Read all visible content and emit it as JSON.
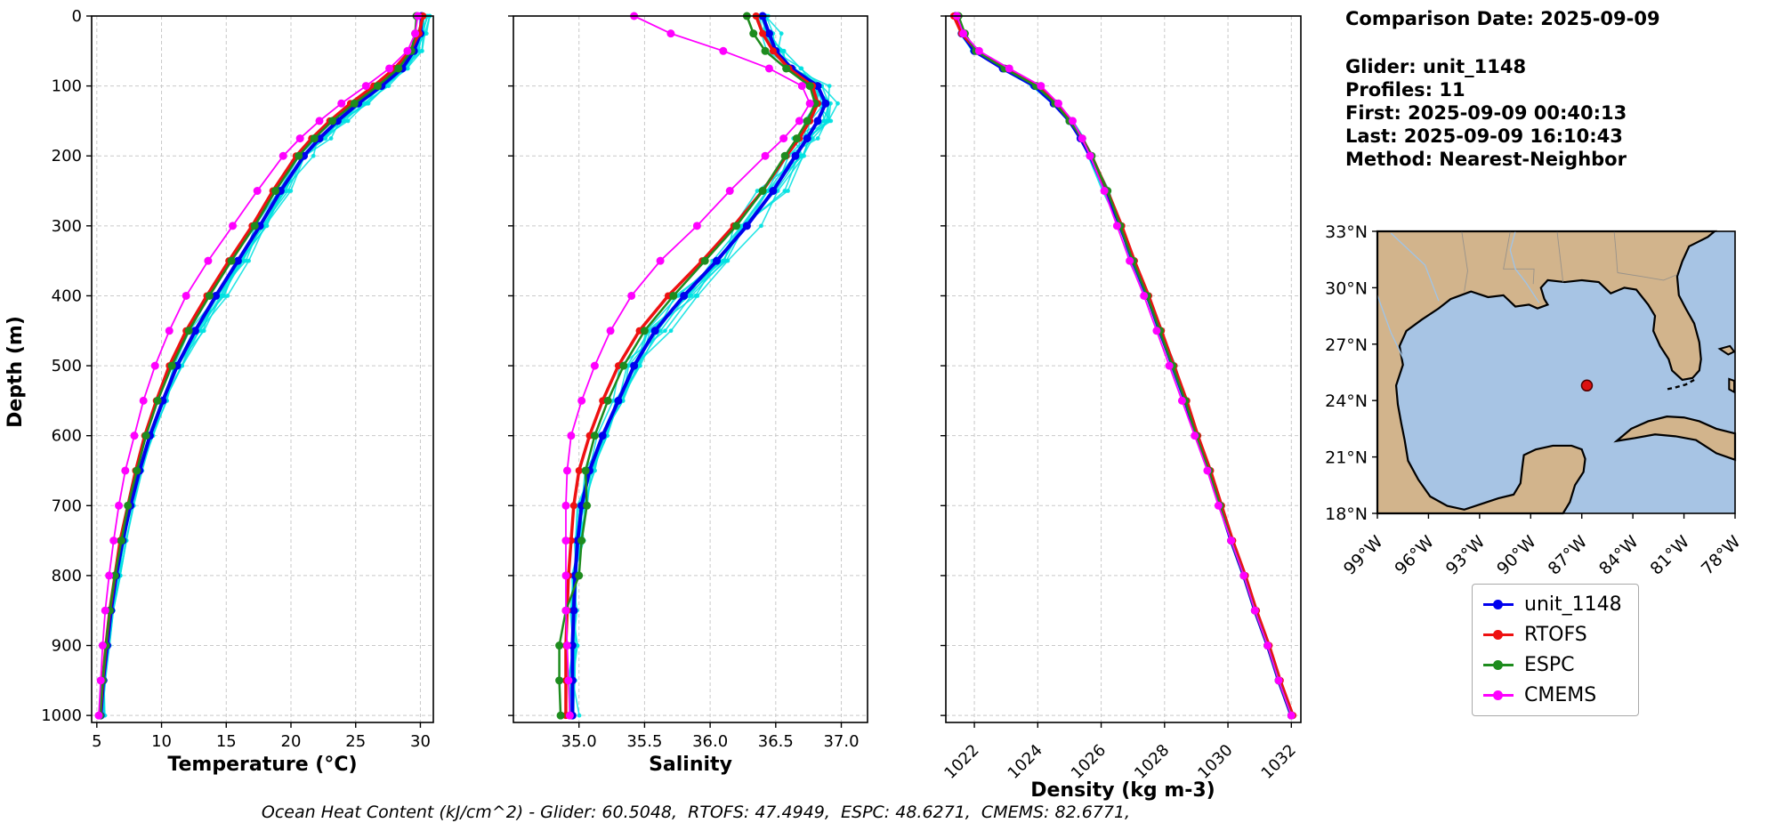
{
  "info_panel": {
    "comparison_date": "Comparison Date: 2025-09-09",
    "lines": [
      "Glider: unit_1148",
      "Profiles: 11",
      "First: 2025-09-09 00:40:13",
      "Last: 2025-09-09 16:10:43",
      "Method: Nearest-Neighbor"
    ]
  },
  "caption": "Ocean Heat Content (kJ/cm^2) - Glider: 60.5048,  RTOFS: 47.4949,  ESPC: 48.6271,  CMEMS: 82.6771,",
  "legend": {
    "items": [
      {
        "label": "unit_1148",
        "color": "#0000EE"
      },
      {
        "label": "RTOFS",
        "color": "#EE1111"
      },
      {
        "label": "ESPC",
        "color": "#1E8C1E"
      },
      {
        "label": "CMEMS",
        "color": "#FF00FF"
      }
    ]
  },
  "chart_data": {
    "type": "line",
    "ylabel": "Depth (m)",
    "ylim": [
      0,
      1010
    ],
    "y_ticks": [
      0,
      100,
      200,
      300,
      400,
      500,
      600,
      700,
      800,
      900,
      1000
    ],
    "depths": [
      0,
      25,
      50,
      75,
      100,
      125,
      150,
      175,
      200,
      250,
      300,
      350,
      400,
      450,
      500,
      550,
      600,
      650,
      700,
      750,
      800,
      850,
      900,
      950,
      1000
    ],
    "charts": [
      {
        "id": "temperature",
        "xlabel": "Temperature (°C)",
        "xlim": [
          4.6,
          31.0
        ],
        "x_ticks": [
          5,
          10,
          15,
          20,
          25,
          30
        ],
        "envelope": {
          "series": "unit_1148",
          "color": "#00E1E1",
          "lines": 9,
          "amp": 0.5,
          "bias": 0.18,
          "seed": 11
        },
        "series": [
          {
            "name": "unit_1148",
            "color": "#0000EE",
            "width": 4,
            "marker": 4.5,
            "values": [
              30.1,
              30.0,
              29.5,
              28.6,
              27.0,
              25.2,
              23.6,
              22.2,
              21.0,
              19.2,
              17.6,
              15.9,
              14.2,
              12.6,
              11.2,
              10.1,
              9.1,
              8.3,
              7.6,
              7.0,
              6.5,
              6.1,
              5.8,
              5.5,
              5.3
            ]
          },
          {
            "name": "RTOFS",
            "color": "#EE1111",
            "width": 3.5,
            "marker": 4,
            "values": [
              30.2,
              29.9,
              29.2,
              28.0,
              26.4,
              24.6,
              23.0,
              21.6,
              20.4,
              18.6,
              17.0,
              15.2,
              13.5,
              11.9,
              10.6,
              9.6,
              8.7,
              8.0,
              7.4,
              6.8,
              6.4,
              6.0,
              5.7,
              5.45,
              5.25
            ]
          },
          {
            "name": "ESPC",
            "color": "#1E8C1E",
            "width": 2.5,
            "marker": 4.5,
            "values": [
              29.7,
              29.6,
              29.3,
              28.3,
              26.7,
              24.9,
              23.2,
              21.8,
              20.6,
              18.8,
              17.2,
              15.4,
              13.7,
              12.1,
              10.8,
              9.7,
              8.8,
              8.1,
              7.4,
              6.9,
              6.4,
              6.0,
              5.7,
              5.45,
              5.25
            ]
          },
          {
            "name": "CMEMS",
            "color": "#FF00FF",
            "width": 1.8,
            "marker": 4.5,
            "values": [
              29.8,
              29.6,
              29.0,
              27.6,
              25.8,
              23.9,
              22.2,
              20.7,
              19.4,
              17.4,
              15.5,
              13.6,
              11.9,
              10.6,
              9.5,
              8.6,
              7.9,
              7.2,
              6.7,
              6.3,
              5.95,
              5.65,
              5.45,
              5.3,
              5.15
            ]
          }
        ]
      },
      {
        "id": "salinity",
        "xlabel": "Salinity",
        "xlim": [
          34.5,
          37.2
        ],
        "x_ticks": [
          35.0,
          35.5,
          36.0,
          36.5,
          37.0
        ],
        "x_tick_labels": [
          "35.0",
          "35.5",
          "36.0",
          "36.5",
          "37.0"
        ],
        "envelope": {
          "series": "unit_1148",
          "color": "#00E1E1",
          "lines": 9,
          "amp": 0.1,
          "bias": 0.02,
          "seed": 22
        },
        "series": [
          {
            "name": "unit_1148",
            "color": "#0000EE",
            "width": 4,
            "marker": 4.5,
            "values": [
              36.4,
              36.45,
              36.5,
              36.62,
              36.82,
              36.88,
              36.82,
              36.74,
              36.65,
              36.48,
              36.28,
              36.05,
              35.8,
              35.58,
              35.42,
              35.3,
              35.18,
              35.08,
              35.02,
              34.99,
              34.97,
              34.96,
              34.95,
              34.95,
              34.95
            ]
          },
          {
            "name": "RTOFS",
            "color": "#EE1111",
            "width": 3.5,
            "marker": 4,
            "values": [
              36.35,
              36.4,
              36.48,
              36.6,
              36.78,
              36.82,
              36.76,
              36.68,
              36.58,
              36.4,
              36.18,
              35.94,
              35.68,
              35.46,
              35.3,
              35.18,
              35.08,
              35.0,
              34.96,
              34.94,
              34.92,
              34.91,
              34.9,
              34.9,
              34.9
            ]
          },
          {
            "name": "ESPC",
            "color": "#1E8C1E",
            "width": 2.5,
            "marker": 4.5,
            "values": [
              36.28,
              36.33,
              36.42,
              36.58,
              36.76,
              36.8,
              36.74,
              36.66,
              36.57,
              36.4,
              36.2,
              35.96,
              35.72,
              35.5,
              35.34,
              35.22,
              35.12,
              35.05,
              35.06,
              35.02,
              35.0,
              34.9,
              34.85,
              34.85,
              34.86
            ]
          },
          {
            "name": "CMEMS",
            "color": "#FF00FF",
            "width": 1.8,
            "marker": 4.5,
            "values": [
              35.42,
              35.7,
              36.1,
              36.45,
              36.7,
              36.76,
              36.68,
              36.56,
              36.42,
              36.15,
              35.9,
              35.62,
              35.4,
              35.24,
              35.12,
              35.02,
              34.94,
              34.91,
              34.9,
              34.9,
              34.9,
              34.9,
              34.91,
              34.92,
              34.93
            ]
          }
        ]
      },
      {
        "id": "density",
        "xlabel": "Density (kg m-3)",
        "xlim": [
          1021.1,
          1032.3
        ],
        "x_ticks": [
          1022,
          1024,
          1026,
          1028,
          1030,
          1032
        ],
        "rotate_x": true,
        "envelope": {
          "series": "unit_1148",
          "color": "#00E1E1",
          "lines": 6,
          "amp": 0.1,
          "bias": 0,
          "seed": 33
        },
        "series": [
          {
            "name": "unit_1148",
            "color": "#0000EE",
            "width": 4,
            "marker": 4.5,
            "values": [
              1021.4,
              1021.6,
              1022.0,
              1022.9,
              1023.9,
              1024.5,
              1025.0,
              1025.35,
              1025.65,
              1026.15,
              1026.6,
              1027.0,
              1027.45,
              1027.85,
              1028.25,
              1028.65,
              1029.0,
              1029.4,
              1029.75,
              1030.1,
              1030.5,
              1030.85,
              1031.25,
              1031.6,
              1032.0
            ]
          },
          {
            "name": "RTOFS",
            "color": "#EE1111",
            "width": 3.5,
            "marker": 4,
            "values": [
              1021.35,
              1021.6,
              1022.1,
              1023.0,
              1024.0,
              1024.6,
              1025.05,
              1025.4,
              1025.7,
              1026.2,
              1026.65,
              1027.05,
              1027.5,
              1027.9,
              1028.3,
              1028.7,
              1029.05,
              1029.45,
              1029.8,
              1030.15,
              1030.55,
              1030.9,
              1031.3,
              1031.65,
              1032.05
            ]
          },
          {
            "name": "ESPC",
            "color": "#1E8C1E",
            "width": 2.5,
            "marker": 4.5,
            "values": [
              1021.5,
              1021.7,
              1022.05,
              1022.95,
              1023.95,
              1024.55,
              1025.0,
              1025.4,
              1025.7,
              1026.2,
              1026.6,
              1027.0,
              1027.45,
              1027.85,
              1028.25,
              1028.65,
              1029.0,
              1029.4,
              1029.75,
              1030.1,
              1030.5,
              1030.85,
              1031.25,
              1031.6,
              1032.0
            ]
          },
          {
            "name": "CMEMS",
            "color": "#FF00FF",
            "width": 1.8,
            "marker": 4.5,
            "values": [
              1021.45,
              1021.65,
              1022.15,
              1023.1,
              1024.1,
              1024.65,
              1025.1,
              1025.4,
              1025.65,
              1026.1,
              1026.5,
              1026.9,
              1027.35,
              1027.75,
              1028.15,
              1028.55,
              1028.95,
              1029.35,
              1029.7,
              1030.1,
              1030.5,
              1030.85,
              1031.25,
              1031.6,
              1032.0
            ]
          }
        ]
      }
    ]
  },
  "map": {
    "extent": {
      "lon": [
        -99,
        -78
      ],
      "lat": [
        18,
        33
      ]
    },
    "lat_ticks": {
      "values": [
        33,
        30,
        27,
        24,
        21,
        18
      ],
      "labels": [
        "33°N",
        "30°N",
        "27°N",
        "24°N",
        "21°N",
        "18°N"
      ]
    },
    "lon_ticks": {
      "values": [
        -99,
        -96,
        -93,
        -90,
        -87,
        -84,
        -81,
        -78
      ],
      "labels": [
        "99°W",
        "96°W",
        "93°W",
        "90°W",
        "87°W",
        "84°W",
        "81°W",
        "78°W"
      ]
    },
    "marker": {
      "lon": -86.7,
      "lat": 24.8
    },
    "colors": {
      "water": "#A7C4E4",
      "land": "#D2B48C",
      "coast": "#000000",
      "marker": "#DD1111",
      "river": "#9FC4E8",
      "border_line": "#8A8A8A"
    },
    "land": {
      "mainland": [
        [
          -99,
          33
        ],
        [
          -79.2,
          33
        ],
        [
          -79.6,
          32.7
        ],
        [
          -80.7,
          32.2
        ],
        [
          -81.1,
          31.4
        ],
        [
          -81.4,
          30.6
        ],
        [
          -81.3,
          29.6
        ],
        [
          -80.9,
          28.9
        ],
        [
          -80.4,
          28.1
        ],
        [
          -80.1,
          27.1
        ],
        [
          -80,
          26.2
        ],
        [
          -80.1,
          25.6
        ],
        [
          -80.5,
          25.2
        ],
        [
          -81.1,
          25.1
        ],
        [
          -81.7,
          25.6
        ],
        [
          -81.9,
          26.2
        ],
        [
          -82.4,
          26.9
        ],
        [
          -82.8,
          27.7
        ],
        [
          -82.7,
          28.5
        ],
        [
          -83.1,
          29.1
        ],
        [
          -83.8,
          29.9
        ],
        [
          -84.5,
          30
        ],
        [
          -85.3,
          29.7
        ],
        [
          -86,
          30.3
        ],
        [
          -87,
          30.4
        ],
        [
          -88,
          30.3
        ],
        [
          -89,
          30.4
        ],
        [
          -89.4,
          30
        ],
        [
          -89.2,
          29.4
        ],
        [
          -89,
          29.1
        ],
        [
          -89.6,
          28.9
        ],
        [
          -90.1,
          29.1
        ],
        [
          -90.9,
          29
        ],
        [
          -91.6,
          29.6
        ],
        [
          -92.5,
          29.5
        ],
        [
          -93.5,
          29.8
        ],
        [
          -94.7,
          29.4
        ],
        [
          -95.4,
          28.9
        ],
        [
          -96.4,
          28.3
        ],
        [
          -97.3,
          27.7
        ],
        [
          -97.7,
          26.9
        ],
        [
          -97.5,
          25.9
        ],
        [
          -97.9,
          24.8
        ],
        [
          -97.8,
          23.8
        ],
        [
          -97.6,
          22.8
        ],
        [
          -97.4,
          21.9
        ],
        [
          -97.2,
          20.8
        ],
        [
          -96.6,
          19.8
        ],
        [
          -95.9,
          18.9
        ],
        [
          -94.9,
          18.4
        ],
        [
          -93.9,
          18.2
        ],
        [
          -92.9,
          18.5
        ],
        [
          -91.9,
          18.8
        ],
        [
          -91,
          19
        ],
        [
          -90.6,
          19.6
        ],
        [
          -90.5,
          20.4
        ],
        [
          -90.4,
          21.1
        ],
        [
          -89.7,
          21.4
        ],
        [
          -88.7,
          21.6
        ],
        [
          -87.6,
          21.6
        ],
        [
          -87,
          21.4
        ],
        [
          -86.8,
          20.9
        ],
        [
          -86.9,
          20.2
        ],
        [
          -87.4,
          19.5
        ],
        [
          -87.7,
          18.6
        ],
        [
          -88.1,
          18
        ],
        [
          -99,
          18
        ]
      ],
      "cuba": [
        [
          -84.95,
          21.85
        ],
        [
          -84.1,
          22.5
        ],
        [
          -83.1,
          22.9
        ],
        [
          -82,
          23.15
        ],
        [
          -81,
          23.1
        ],
        [
          -80.1,
          22.9
        ],
        [
          -79.1,
          22.5
        ],
        [
          -78,
          22.25
        ],
        [
          -78,
          20.85
        ],
        [
          -79.1,
          21.2
        ],
        [
          -80.3,
          21.9
        ],
        [
          -81.5,
          22.1
        ],
        [
          -82.7,
          22.2
        ],
        [
          -83.9,
          22
        ]
      ],
      "islands": [
        [
          [
            -78.9,
            26.75
          ],
          [
            -78.3,
            26.9
          ],
          [
            -78.05,
            26.6
          ],
          [
            -78.4,
            26.45
          ]
        ],
        [
          [
            -78.35,
            25.15
          ],
          [
            -78.05,
            25.05
          ],
          [
            -78.05,
            24.45
          ],
          [
            -78.35,
            24.6
          ]
        ]
      ],
      "keys": [
        [
          -80.4,
          25.1
        ],
        [
          -80.9,
          24.85
        ],
        [
          -81.5,
          24.7
        ],
        [
          -82,
          24.6
        ]
      ]
    },
    "rivers": [
      [
        [
          -90.9,
          33
        ],
        [
          -91.2,
          32
        ],
        [
          -90.9,
          31
        ],
        [
          -90.3,
          30.3
        ],
        [
          -89.5,
          29.2
        ]
      ],
      [
        [
          -99,
          29.6
        ],
        [
          -98.2,
          27.6
        ],
        [
          -97.3,
          25.9
        ]
      ],
      [
        [
          -98.2,
          32.9
        ],
        [
          -96.2,
          31.2
        ],
        [
          -95.4,
          29.3
        ]
      ]
    ],
    "state_borders": [
      [
        [
          -94.05,
          33
        ],
        [
          -93.85,
          31.8
        ],
        [
          -93.7,
          30.9
        ],
        [
          -93.9,
          29.8
        ]
      ],
      [
        [
          -91.2,
          33
        ],
        [
          -91.6,
          31
        ],
        [
          -89.8,
          31
        ],
        [
          -89.85,
          30.2
        ]
      ],
      [
        [
          -88.45,
          33
        ],
        [
          -88.1,
          30.3
        ]
      ],
      [
        [
          -85.1,
          33
        ],
        [
          -85,
          32
        ],
        [
          -84.9,
          30.8
        ]
      ],
      [
        [
          -84.9,
          30.8
        ],
        [
          -83.5,
          30.6
        ],
        [
          -82.2,
          30.4
        ],
        [
          -81.4,
          30.7
        ]
      ]
    ]
  }
}
